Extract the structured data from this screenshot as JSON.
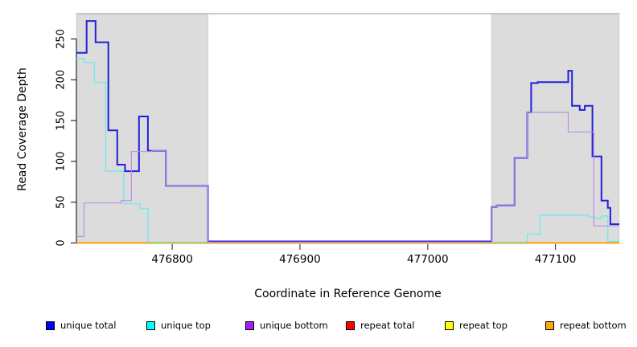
{
  "chart_data": {
    "type": "line",
    "title": "",
    "xlabel": "Coordinate in Reference Genome",
    "ylabel": "Read Coverage Depth",
    "xlim": [
      476725,
      477150
    ],
    "ylim": [
      0,
      283
    ],
    "x_ticks": [
      476800,
      476900,
      477000,
      477100
    ],
    "y_ticks": [
      0,
      50,
      100,
      150,
      200,
      250
    ],
    "grid": false,
    "legend_position": "bottom",
    "interpolation": "step-after",
    "plot_background": "#ffffff",
    "masked_region_color": "#dcdcdc",
    "masked_regions": [
      [
        476725,
        476828
      ],
      [
        477050,
        477150
      ]
    ],
    "series": [
      {
        "name": "unique total",
        "legend_color": "#0000ff",
        "color": "#2121d9",
        "width": 2,
        "points": [
          [
            476725,
            233
          ],
          [
            476733,
            272
          ],
          [
            476740,
            246
          ],
          [
            476750,
            138
          ],
          [
            476757,
            96
          ],
          [
            476763,
            88
          ],
          [
            476774,
            155
          ],
          [
            476781,
            113
          ],
          [
            476795,
            70
          ],
          [
            476828,
            2
          ],
          [
            477050,
            44
          ],
          [
            477054,
            46
          ],
          [
            477068,
            104
          ],
          [
            477078,
            160
          ],
          [
            477081,
            196
          ],
          [
            477086,
            197
          ],
          [
            477110,
            211
          ],
          [
            477113,
            168
          ],
          [
            477119,
            163
          ],
          [
            477123,
            168
          ],
          [
            477129,
            106
          ],
          [
            477136,
            52
          ],
          [
            477141,
            43
          ],
          [
            477143,
            23
          ],
          [
            477150,
            23
          ]
        ]
      },
      {
        "name": "unique top",
        "legend_color": "#00ffff",
        "color": "#6ae9e9",
        "width": 1.2,
        "points": [
          [
            476725,
            226
          ],
          [
            476731,
            221
          ],
          [
            476739,
            197
          ],
          [
            476748,
            88
          ],
          [
            476762,
            48
          ],
          [
            476775,
            42
          ],
          [
            476781,
            1
          ],
          [
            477078,
            11
          ],
          [
            477088,
            34
          ],
          [
            477126,
            32
          ],
          [
            477131,
            30
          ],
          [
            477136,
            33
          ],
          [
            477141,
            2
          ],
          [
            477150,
            2
          ]
        ]
      },
      {
        "name": "unique bottom",
        "legend_color": "#a020f0",
        "color": "#bb8fe3",
        "width": 1.2,
        "points": [
          [
            476725,
            8
          ],
          [
            476731,
            49
          ],
          [
            476760,
            52
          ],
          [
            476768,
            112
          ],
          [
            476784,
            113
          ],
          [
            476795,
            70
          ],
          [
            476828,
            1
          ],
          [
            477050,
            44
          ],
          [
            477054,
            46
          ],
          [
            477068,
            104
          ],
          [
            477078,
            160
          ],
          [
            477110,
            136
          ],
          [
            477130,
            21
          ],
          [
            477150,
            21
          ]
        ]
      },
      {
        "name": "repeat total",
        "legend_color": "#ff0000",
        "color": "#dd2222",
        "width": 1.2,
        "points": [
          [
            476725,
            0
          ],
          [
            477150,
            0
          ]
        ]
      },
      {
        "name": "repeat top",
        "legend_color": "#ffff00",
        "color": "#f5f500",
        "width": 1.2,
        "points": [
          [
            476725,
            0
          ],
          [
            477150,
            0
          ]
        ]
      },
      {
        "name": "repeat bottom",
        "legend_color": "#ffa500",
        "color": "#ff9d00",
        "width": 2,
        "points": [
          [
            476725,
            0
          ],
          [
            477150,
            0
          ]
        ]
      }
    ]
  }
}
